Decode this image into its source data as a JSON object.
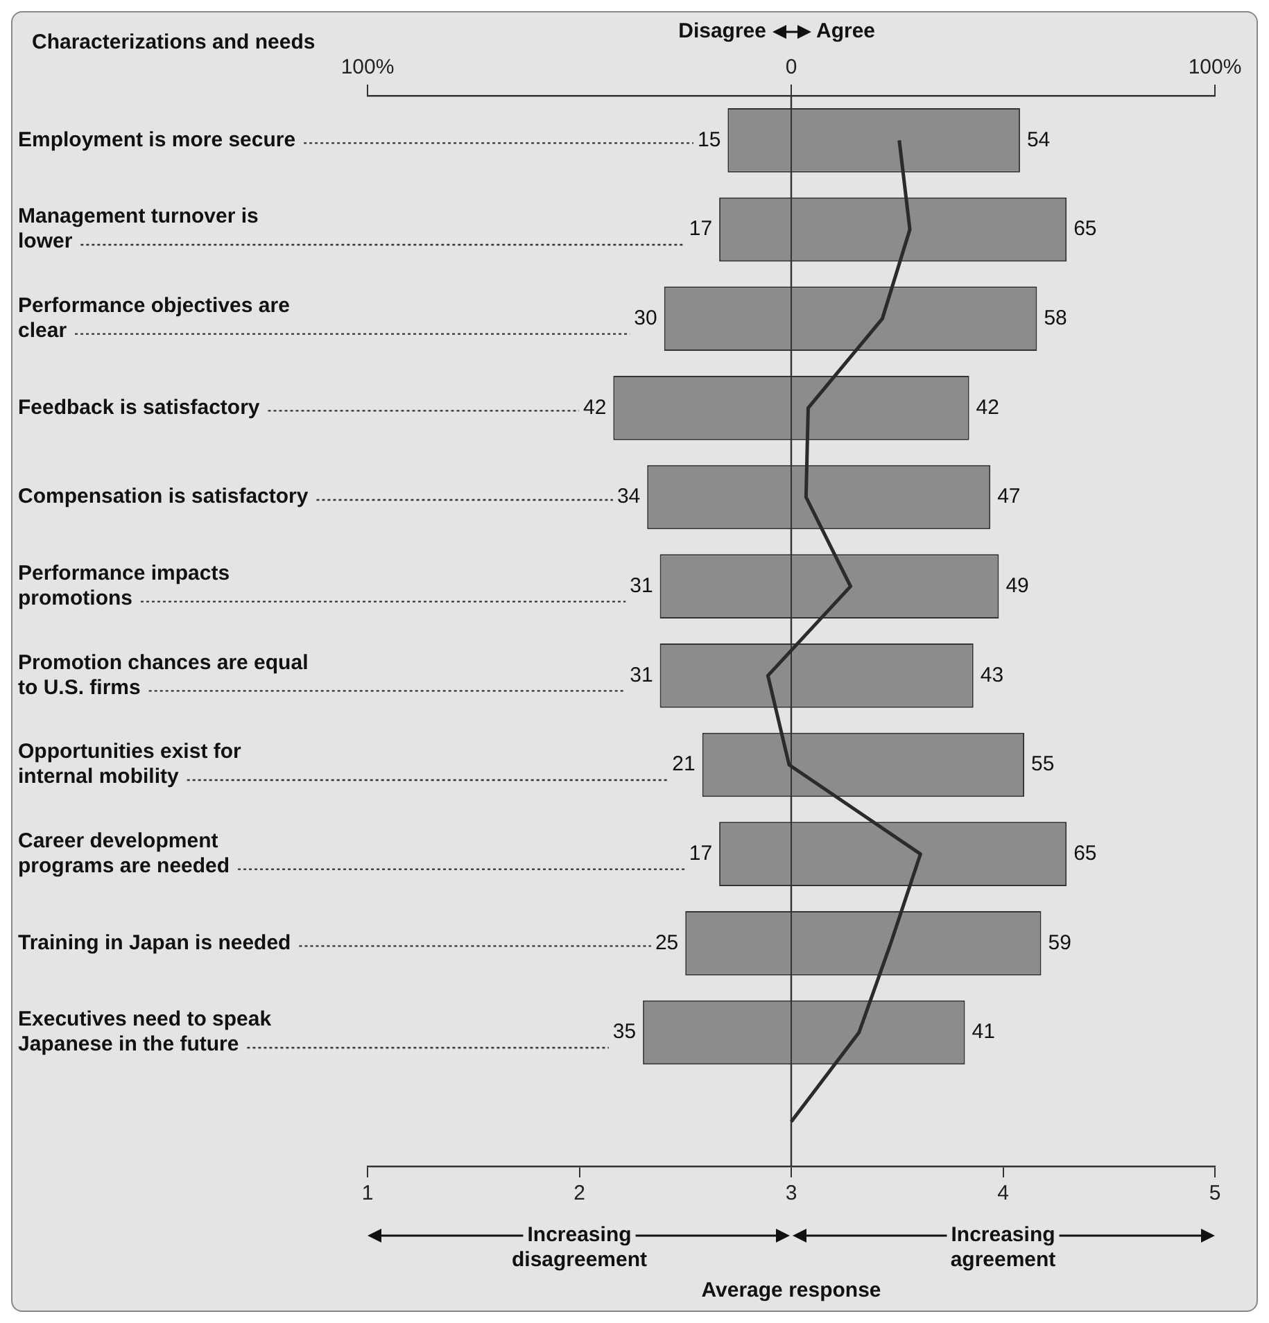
{
  "chart_data": {
    "type": "bar",
    "orientation": "horizontal",
    "ylabel": "Characterizations and needs",
    "xlabel": "Average response",
    "annotations": [
      "Disagree",
      "Agree",
      "Increasing disagreement",
      "Increasing agreement"
    ],
    "categories": [
      "Employment is more secure",
      "Management turnover is lower",
      "Performance objectives are clear",
      "Feedback is satisfactory",
      "Compensation is satisfactory",
      "Performance impacts promotions",
      "Promotion chances are equal to U.S. firms",
      "Opportunities exist for internal mobility",
      "Career development programs are needed",
      "Training in Japan is needed",
      "Executives need to speak Japanese in the future",
      null
    ],
    "series": [
      {
        "axis": "x2",
        "color": "#8c8c8c",
        "values": [
          15,
          17,
          30,
          42,
          34,
          31,
          31,
          21,
          17,
          25,
          35,
          null
        ],
        "base": [
          -15,
          -17,
          -30,
          -42,
          -34,
          -31,
          -31,
          -21,
          -17,
          -25,
          -35,
          null
        ],
        "value_labels": [
          "15",
          "17",
          "30",
          "42",
          "34",
          "31",
          "31",
          "21",
          "17",
          "25",
          "35",
          null
        ]
      },
      {
        "axis": "x2",
        "color": "#8c8c8c",
        "values": [
          54,
          65,
          58,
          42,
          47,
          49,
          43,
          55,
          65,
          59,
          41,
          null
        ],
        "value_labels": [
          "54",
          "65",
          "58",
          "42",
          "47",
          "49",
          "43",
          "55",
          "65",
          "59",
          "41",
          null
        ]
      },
      {
        "type": "line",
        "color": "#2b2b2b",
        "marker": "none",
        "values": [
          3.51,
          3.56,
          3.43,
          3.08,
          3.07,
          3.28,
          2.89,
          2.99,
          3.61,
          3.47,
          3.32,
          3.0
        ]
      }
    ],
    "xlim": [
      1,
      5
    ],
    "xticks": [
      1,
      2,
      3,
      4,
      5
    ],
    "x2lim": [
      -100,
      100
    ],
    "x2ticks": [
      {
        "value": -100,
        "label": "100%"
      },
      0,
      {
        "value": 100,
        "label": "100%"
      }
    ],
    "ref_lines": [
      {
        "axis": "x2",
        "value": 0
      }
    ],
    "grid": false,
    "legend": false
  }
}
